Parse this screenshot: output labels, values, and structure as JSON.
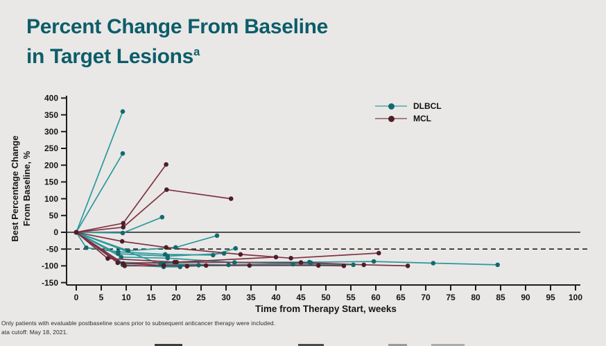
{
  "page": {
    "background_color": "#e9e8e6",
    "accent_color": "#0c5d69"
  },
  "title": {
    "line1": "Percent Change From Baseline",
    "line2": "in Target Lesions",
    "superscript": "a",
    "color": "#0c5d69"
  },
  "chart_data": {
    "type": "line",
    "subtype": "spider-plot-oncology",
    "title": "Percent Change From Baseline in Target Lesions",
    "xlabel": "Time from Therapy Start, weeks",
    "ylabel": "Best Percentage Change From Baseline, %",
    "ylabel_lines": [
      "Best Percentage Change",
      "From Baseline, %"
    ],
    "xlim": [
      0,
      100
    ],
    "ylim": [
      -150,
      400
    ],
    "xticks": [
      0,
      5,
      10,
      15,
      20,
      25,
      30,
      35,
      40,
      45,
      50,
      55,
      60,
      65,
      70,
      75,
      80,
      85,
      90,
      95,
      100
    ],
    "yticks": [
      400,
      350,
      300,
      250,
      200,
      150,
      100,
      50,
      0,
      -50,
      -100,
      -150
    ],
    "grid": false,
    "reference_lines": [
      {
        "y": 0,
        "style": "solid",
        "color": "#1d1d1d"
      },
      {
        "y": -50,
        "style": "dashed",
        "color": "#1d1d1d"
      }
    ],
    "legend": {
      "position": "upper-right-inside",
      "entries": [
        {
          "label": "DLBCL",
          "line_color": "#2b989b",
          "marker_color": "#13696e"
        },
        {
          "label": "MCL",
          "line_color": "#7e3242",
          "marker_color": "#4f1d29"
        }
      ]
    },
    "series": [
      {
        "name": "DLBCL",
        "line_color": "#2b989b",
        "marker_color": "#13696e",
        "lines": [
          [
            [
              0,
              0
            ],
            [
              9.3,
              360
            ]
          ],
          [
            [
              0,
              0
            ],
            [
              9.3,
              235
            ]
          ],
          [
            [
              0,
              0
            ],
            [
              9.3,
              -2
            ],
            [
              17.2,
              45
            ]
          ],
          [
            [
              0,
              0
            ],
            [
              10.4,
              -55
            ],
            [
              19.9,
              -45
            ],
            [
              28.2,
              -10
            ]
          ],
          [
            [
              0,
              0
            ],
            [
              2,
              -46
            ],
            [
              8.4,
              -58
            ],
            [
              17.8,
              -66
            ],
            [
              27.4,
              -68
            ],
            [
              31.9,
              -48
            ]
          ],
          [
            [
              0,
              0
            ],
            [
              8.4,
              -64
            ],
            [
              18.3,
              -71
            ],
            [
              29.6,
              -63
            ]
          ],
          [
            [
              0,
              0
            ],
            [
              9,
              -74
            ],
            [
              18.3,
              -77
            ],
            [
              31.7,
              -90
            ],
            [
              46.7,
              -89
            ],
            [
              59.6,
              -87
            ],
            [
              71.5,
              -92
            ],
            [
              84.4,
              -97
            ]
          ],
          [
            [
              0,
              0
            ],
            [
              16.9,
              -95
            ],
            [
              24.5,
              -98
            ],
            [
              43.4,
              -95
            ],
            [
              55.5,
              -97
            ]
          ],
          [
            [
              0,
              0
            ],
            [
              8.4,
              -89
            ],
            [
              17.5,
              -93
            ],
            [
              30.5,
              -97
            ],
            [
              47,
              -91
            ]
          ],
          [
            [
              0,
              0
            ],
            [
              9.3,
              -97
            ],
            [
              17.5,
              -103
            ],
            [
              20.8,
              -103
            ]
          ]
        ]
      },
      {
        "name": "MCL",
        "line_color": "#7e3242",
        "marker_color": "#4f1d29",
        "lines": [
          [
            [
              0,
              0
            ],
            [
              9.4,
              27
            ],
            [
              18,
              202
            ]
          ],
          [
            [
              0,
              0
            ],
            [
              9.4,
              15
            ],
            [
              18.1,
              127
            ],
            [
              31,
              100
            ]
          ],
          [
            [
              0,
              0
            ],
            [
              9.2,
              -27
            ],
            [
              18,
              -45
            ],
            [
              32.9,
              -66
            ],
            [
              43,
              -77
            ],
            [
              60.6,
              -62
            ]
          ],
          [
            [
              0,
              0
            ],
            [
              6.3,
              -78
            ],
            [
              20.1,
              -89
            ],
            [
              40,
              -74
            ]
          ],
          [
            [
              0,
              0
            ],
            [
              8.3,
              -91
            ],
            [
              17.5,
              -99
            ],
            [
              22.2,
              -101
            ],
            [
              26,
              -99
            ]
          ],
          [
            [
              0,
              0
            ],
            [
              9.7,
              -100
            ],
            [
              34.7,
              -99
            ],
            [
              48.5,
              -99
            ],
            [
              53.6,
              -100
            ]
          ],
          [
            [
              0,
              0
            ],
            [
              9.4,
              -93
            ],
            [
              19.7,
              -89
            ],
            [
              45,
              -90
            ],
            [
              57.6,
              -97
            ],
            [
              66.4,
              -100
            ]
          ]
        ]
      }
    ]
  },
  "footnotes": {
    "line1": "Only patients with evaluable postbaseline scans prior to subsequent anticancer therapy were included.",
    "line2": "ata cutoff: May 18, 2021."
  }
}
